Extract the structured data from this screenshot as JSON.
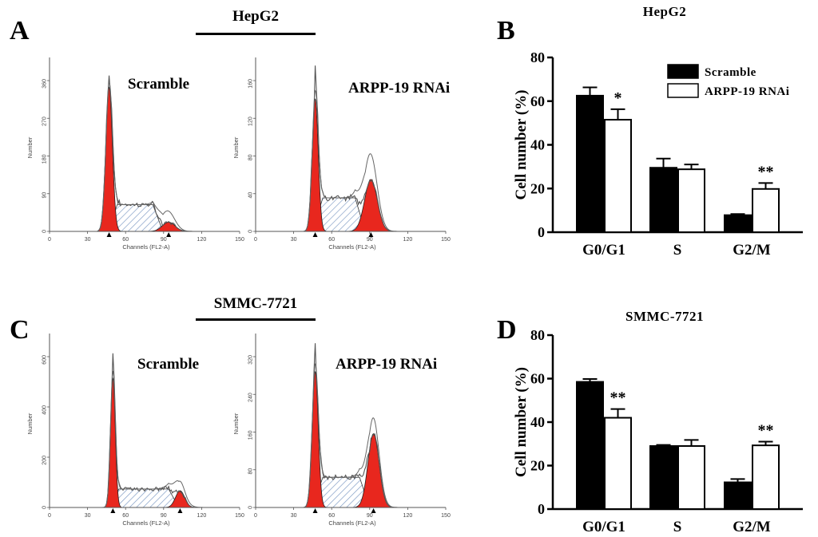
{
  "panels": {
    "A": {
      "letter": "A",
      "cell_line": "HepG2"
    },
    "B": {
      "letter": "B",
      "cell_line": "HepG2"
    },
    "C": {
      "letter": "C",
      "cell_line": "SMMC-7721"
    },
    "D": {
      "letter": "D",
      "cell_line": "SMMC-7721"
    }
  },
  "flow": {
    "x_axis_label": "Channels (FL2-A)",
    "y_axis_label": "Number",
    "x_ticks": [
      "0",
      "30",
      "60",
      "90",
      "120",
      "150"
    ],
    "histograms": [
      {
        "label": "Scramble",
        "y_ticks": [
          "0",
          "90",
          "180",
          "270",
          "360"
        ]
      },
      {
        "label": "ARPP-19 RNAi",
        "y_ticks": [
          "0",
          "40",
          "80",
          "120",
          "160"
        ]
      },
      {
        "label": "Scramble",
        "y_ticks": [
          "0",
          "200",
          "400",
          "600"
        ]
      },
      {
        "label": "ARPP-19 RNAi",
        "y_ticks": [
          "0",
          "80",
          "160",
          "240",
          "320"
        ]
      }
    ]
  },
  "chart_data": [
    {
      "type": "bar",
      "title": "HepG2",
      "ylabel": "Cell number (%)",
      "categories": [
        "G0/G1",
        "S",
        "G2/M"
      ],
      "ylim": [
        0,
        80
      ],
      "yticks": [
        "0",
        "20",
        "40",
        "60",
        "80"
      ],
      "series": [
        {
          "name": "Scramble",
          "values": [
            62.5,
            29.5,
            7.8
          ],
          "errors": [
            3.8,
            4.2,
            0.5
          ],
          "color": "#000000"
        },
        {
          "name": "ARPP-19 RNAi",
          "values": [
            51.5,
            28.8,
            19.8
          ],
          "errors": [
            4.8,
            2.2,
            2.7
          ],
          "color": "#ffffff"
        }
      ],
      "significance": [
        "*",
        "",
        "**"
      ],
      "legend": "top-right"
    },
    {
      "type": "bar",
      "title": "SMMC-7721",
      "ylabel": "Cell number (%)",
      "categories": [
        "G0/G1",
        "S",
        "G2/M"
      ],
      "ylim": [
        0,
        80
      ],
      "yticks": [
        "0",
        "20",
        "40",
        "60",
        "80"
      ],
      "series": [
        {
          "name": "Scramble",
          "values": [
            58.5,
            29.0,
            12.3
          ],
          "errors": [
            1.3,
            0.5,
            1.5
          ],
          "color": "#000000"
        },
        {
          "name": "ARPP-19 RNAi",
          "values": [
            42.0,
            29.0,
            29.3
          ],
          "errors": [
            4.0,
            2.8,
            1.7
          ],
          "color": "#ffffff"
        }
      ],
      "significance": [
        "**",
        "",
        "**"
      ]
    }
  ]
}
